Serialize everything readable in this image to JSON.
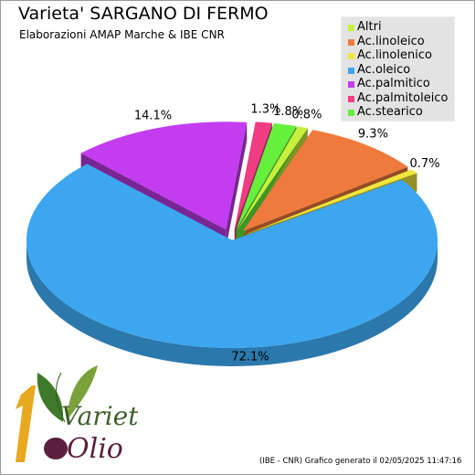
{
  "title": "Varieta' SARGANO DI FERMO",
  "subtitle": "Elaborazioni AMAP Marche & IBE CNR",
  "footer": "(IBE - CNR) Grafico generato il 02/05/2025 11:47:16",
  "logo": {
    "line1": "Varietà",
    "line2": "Olio"
  },
  "chart_data": {
    "type": "pie",
    "title": "Varieta' SARGANO DI FERMO",
    "subtitle": "Elaborazioni AMAP Marche & IBE CNR",
    "legend_position": "top-right",
    "slices": [
      {
        "name": "Altri",
        "value": 0.8,
        "label": "0.8%",
        "color": "#c8f03c"
      },
      {
        "name": "Ac.linoleico",
        "value": 9.3,
        "label": "9.3%",
        "color": "#f07a3c"
      },
      {
        "name": "Ac.linolenico",
        "value": 0.7,
        "label": "0.7%",
        "color": "#f0e63c"
      },
      {
        "name": "Ac.oleico",
        "value": 72.1,
        "label": "72.1%",
        "color": "#3ca6f0"
      },
      {
        "name": "Ac.palmitico",
        "value": 14.1,
        "label": "14.1%",
        "color": "#c43cf0"
      },
      {
        "name": "Ac.palmitoleico",
        "value": 1.3,
        "label": "1.3%",
        "color": "#f03c82"
      },
      {
        "name": "Ac.stearico",
        "value": 1.8,
        "label": "1.8%",
        "color": "#64f03c"
      }
    ]
  }
}
